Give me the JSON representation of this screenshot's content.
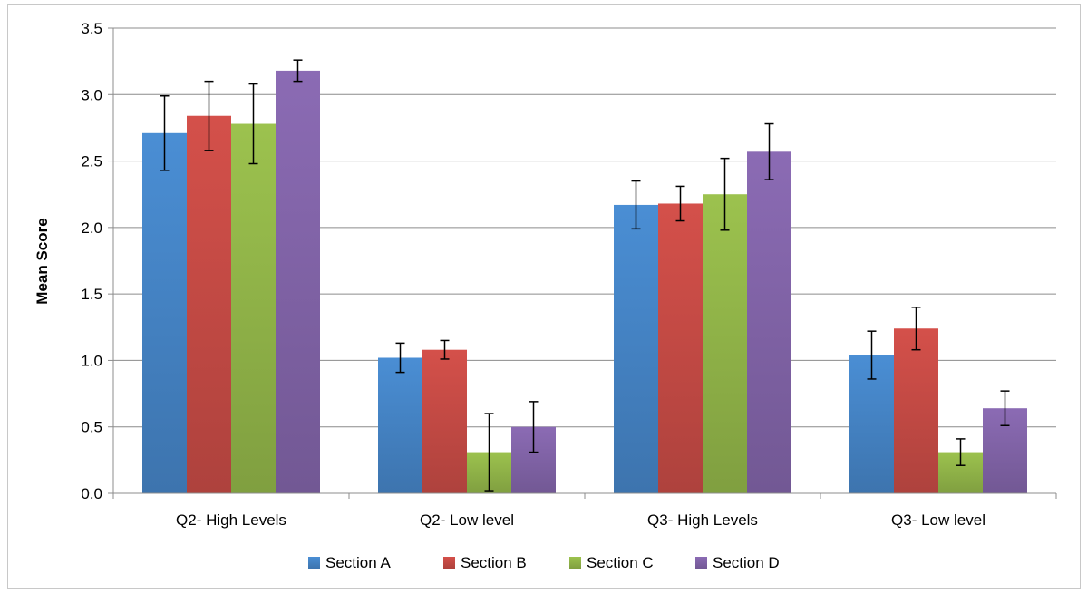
{
  "chart_data": {
    "type": "bar",
    "title": "",
    "xlabel": "",
    "ylabel": "Mean Score",
    "ylim": [
      0,
      3.5
    ],
    "yticks": [
      "0.0",
      "0.5",
      "1.0",
      "1.5",
      "2.0",
      "2.5",
      "3.0",
      "3.5"
    ],
    "grid": true,
    "legend_position": "bottom",
    "categories": [
      "Q2- High Levels",
      "Q2- Low level",
      "Q3- High Levels",
      "Q3- Low level"
    ],
    "series": [
      {
        "name": "Section A",
        "color": "#4a8ed4",
        "values": [
          2.71,
          1.02,
          2.17,
          1.04
        ],
        "errors": [
          0.28,
          0.11,
          0.18,
          0.18
        ]
      },
      {
        "name": "Section B",
        "color": "#d4504a",
        "values": [
          2.84,
          1.08,
          2.18,
          1.24
        ],
        "errors": [
          0.26,
          0.07,
          0.13,
          0.16
        ]
      },
      {
        "name": "Section C",
        "color": "#9cc24e",
        "values": [
          2.78,
          0.31,
          2.25,
          0.31
        ],
        "errors": [
          0.3,
          0.29,
          0.27,
          0.1
        ]
      },
      {
        "name": "Section D",
        "color": "#8b6bb4",
        "values": [
          3.18,
          0.5,
          2.57,
          0.64
        ],
        "errors": [
          0.08,
          0.19,
          0.21,
          0.13
        ]
      }
    ]
  }
}
